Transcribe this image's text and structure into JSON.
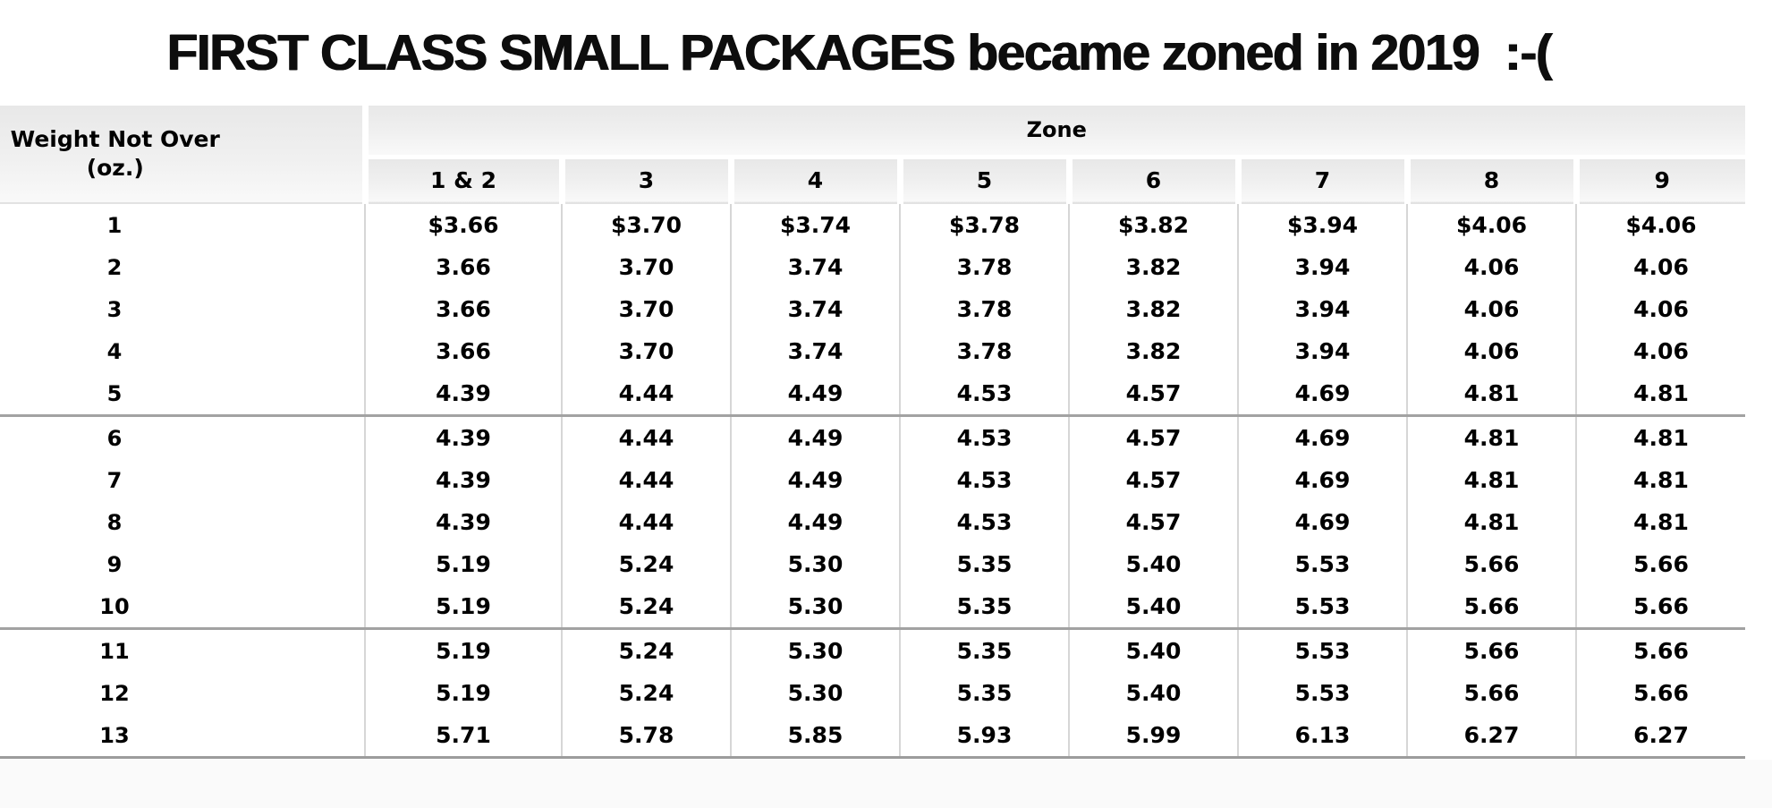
{
  "title": "FIRST CLASS SMALL PACKAGES became zoned in 2019  :-(",
  "table": {
    "weight_header_line1": "Weight Not Over",
    "weight_header_line2": "(oz.)",
    "zone_header": "Zone",
    "zone_columns": [
      "1 & 2",
      "3",
      "4",
      "5",
      "6",
      "7",
      "8",
      "9"
    ],
    "rows": [
      {
        "weight": "1",
        "prices": [
          "$3.66",
          "$3.70",
          "$3.74",
          "$3.78",
          "$3.82",
          "$3.94",
          "$4.06",
          "$4.06"
        ]
      },
      {
        "weight": "2",
        "prices": [
          "3.66",
          "3.70",
          "3.74",
          "3.78",
          "3.82",
          "3.94",
          "4.06",
          "4.06"
        ]
      },
      {
        "weight": "3",
        "prices": [
          "3.66",
          "3.70",
          "3.74",
          "3.78",
          "3.82",
          "3.94",
          "4.06",
          "4.06"
        ]
      },
      {
        "weight": "4",
        "prices": [
          "3.66",
          "3.70",
          "3.74",
          "3.78",
          "3.82",
          "3.94",
          "4.06",
          "4.06"
        ]
      },
      {
        "weight": "5",
        "prices": [
          "4.39",
          "4.44",
          "4.49",
          "4.53",
          "4.57",
          "4.69",
          "4.81",
          "4.81"
        ],
        "group_end": true
      },
      {
        "weight": "6",
        "prices": [
          "4.39",
          "4.44",
          "4.49",
          "4.53",
          "4.57",
          "4.69",
          "4.81",
          "4.81"
        ]
      },
      {
        "weight": "7",
        "prices": [
          "4.39",
          "4.44",
          "4.49",
          "4.53",
          "4.57",
          "4.69",
          "4.81",
          "4.81"
        ]
      },
      {
        "weight": "8",
        "prices": [
          "4.39",
          "4.44",
          "4.49",
          "4.53",
          "4.57",
          "4.69",
          "4.81",
          "4.81"
        ]
      },
      {
        "weight": "9",
        "prices": [
          "5.19",
          "5.24",
          "5.30",
          "5.35",
          "5.40",
          "5.53",
          "5.66",
          "5.66"
        ]
      },
      {
        "weight": "10",
        "prices": [
          "5.19",
          "5.24",
          "5.30",
          "5.35",
          "5.40",
          "5.53",
          "5.66",
          "5.66"
        ],
        "group_end": true
      },
      {
        "weight": "11",
        "prices": [
          "5.19",
          "5.24",
          "5.30",
          "5.35",
          "5.40",
          "5.53",
          "5.66",
          "5.66"
        ]
      },
      {
        "weight": "12",
        "prices": [
          "5.19",
          "5.24",
          "5.30",
          "5.35",
          "5.40",
          "5.53",
          "5.66",
          "5.66"
        ]
      },
      {
        "weight": "13",
        "prices": [
          "5.71",
          "5.78",
          "5.85",
          "5.93",
          "5.99",
          "6.13",
          "6.27",
          "6.27"
        ]
      }
    ]
  }
}
